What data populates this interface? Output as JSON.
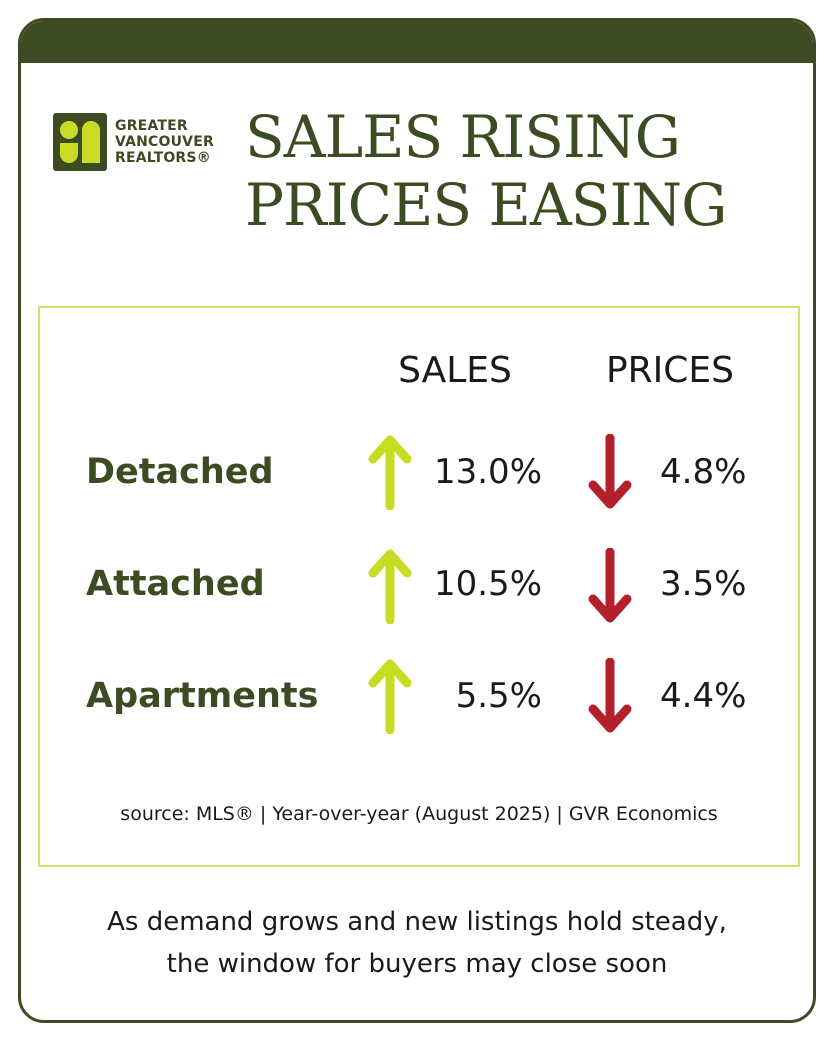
{
  "colors": {
    "olive": "#3d4b23",
    "lime": "#c9dc24",
    "red": "#b3202c",
    "box_border": "#d6e16a"
  },
  "logo": {
    "line1": "GREATER",
    "line2": "VANCOUVER",
    "line3": "REALTORS®"
  },
  "headline": {
    "line1": "SALES RISING",
    "line2": "PRICES EASING"
  },
  "columns": {
    "sales": "SALES",
    "prices": "PRICES"
  },
  "rows": [
    {
      "label": "Detached",
      "sales": "13.0%",
      "sales_direction": "up",
      "prices": "4.8%",
      "prices_direction": "down"
    },
    {
      "label": "Attached",
      "sales": "10.5%",
      "sales_direction": "up",
      "prices": "3.5%",
      "prices_direction": "down"
    },
    {
      "label": "Apartments",
      "sales": "5.5%",
      "sales_direction": "up",
      "prices": "4.4%",
      "prices_direction": "down"
    }
  ],
  "source": "source: MLS® | Year-over-year (August 2025) | GVR Economics",
  "footer": {
    "line1": "As demand grows and new listings hold steady,",
    "line2": "the window for buyers may close soon"
  }
}
